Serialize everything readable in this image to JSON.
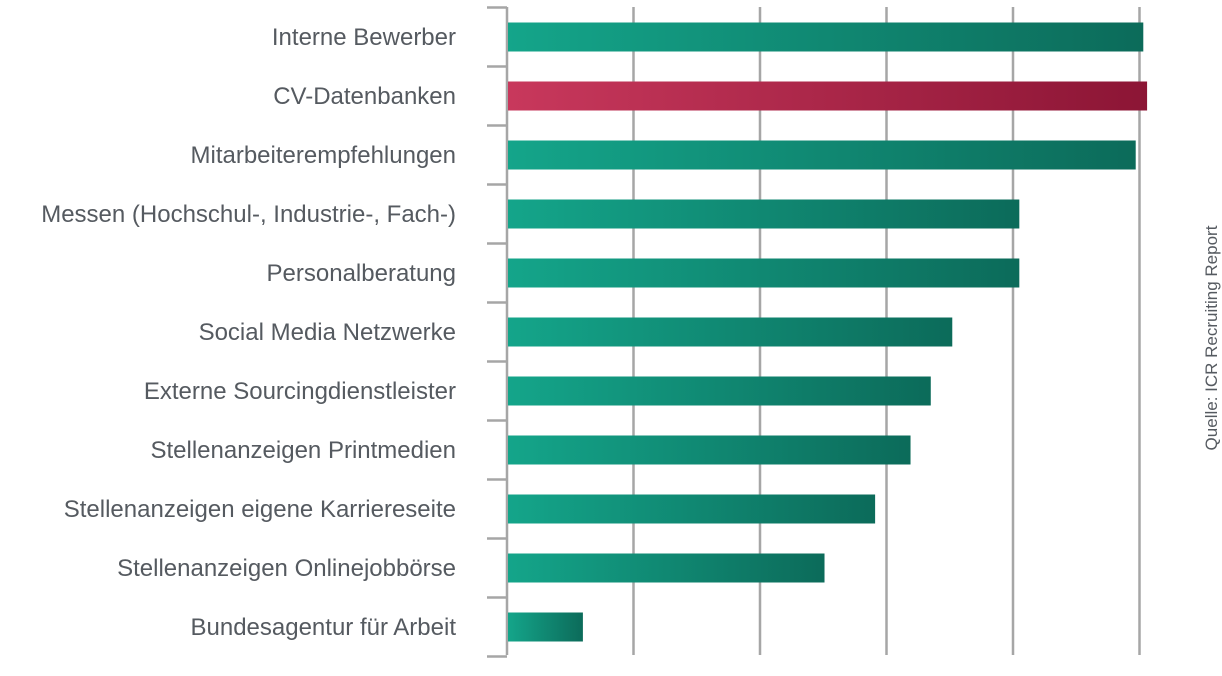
{
  "colors": {
    "teal_start": "#14a58a",
    "teal_end": "#0c6b5a",
    "red_start": "#c8385c",
    "red_end": "#8c1535",
    "grid": "#a6a6a6",
    "text": "#555a60"
  },
  "source": "Quelle: ICR Recruiting Report",
  "chart_data": {
    "type": "bar",
    "orientation": "horizontal",
    "title": "",
    "xlabel": "",
    "ylabel": "",
    "xlim": [
      0,
      5
    ],
    "grid": true,
    "highlight_index": 1,
    "categories": [
      "Interne Bewerber",
      "CV-Datenbanken",
      "Mitarbeiterempfehlungen",
      "Messen (Hochschul-, Industrie-, Fach-)",
      "Personalberatung",
      "Social Media Netzwerke",
      "Externe Sourcingdienstleister",
      "Stellenanzeigen Printmedien",
      "Stellenanzeigen eigene Karriereseite",
      "Stellenanzeigen Onlinejobbörse",
      "Bundesagentur für Arbeit"
    ],
    "values": [
      5.03,
      5.06,
      4.97,
      4.05,
      4.05,
      3.52,
      3.35,
      3.19,
      2.91,
      2.51,
      0.6
    ]
  }
}
